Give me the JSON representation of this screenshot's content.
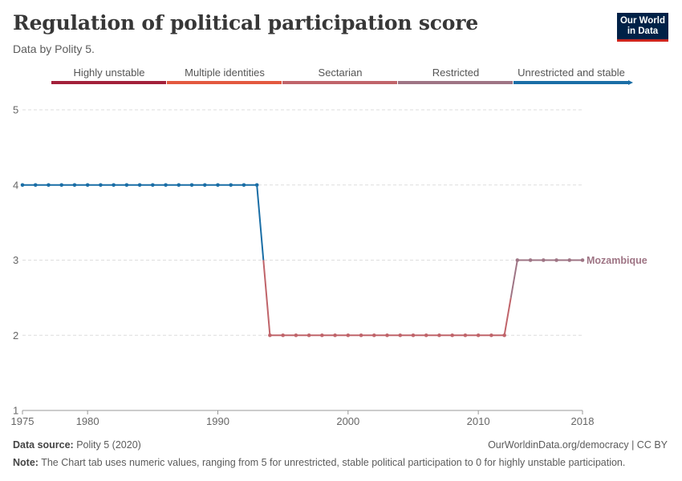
{
  "header": {
    "title": "Regulation of political participation score",
    "subtitle": "Data by Polity 5.",
    "logo_line1": "Our World",
    "logo_line2": "in Data"
  },
  "footer": {
    "source_label": "Data source:",
    "source_text": " Polity 5 (2020)",
    "url": "OurWorldinData.org/democracy | CC BY",
    "note_label": "Note:",
    "note_text": " The Chart tab uses numeric values, ranging from 5 for unrestricted, stable political participation to 0 for highly unstable participation."
  },
  "colors": {
    "highly_unstable": "#a2203a",
    "multiple_identities": "#e3593f",
    "sectarian": "#c0646a",
    "restricted": "#9e7484",
    "unrestricted": "#1a6ea6",
    "grid": "#dddddd",
    "axis_text": "#666666"
  },
  "chart_data": {
    "type": "line",
    "title": "Regulation of political participation score",
    "xlim": [
      1975,
      2018
    ],
    "ylim": [
      1,
      5
    ],
    "x_ticks": [
      1975,
      1980,
      1990,
      2000,
      2010,
      2018
    ],
    "y_ticks": [
      1,
      2,
      3,
      4,
      5
    ],
    "grid": true,
    "legend": {
      "placement": "top",
      "categories": [
        "Highly unstable",
        "Multiple identities",
        "Sectarian",
        "Restricted",
        "Unrestricted and stable"
      ]
    },
    "series": [
      {
        "name": "Mozambique",
        "x": [
          1975,
          1976,
          1977,
          1978,
          1979,
          1980,
          1981,
          1982,
          1983,
          1984,
          1985,
          1986,
          1987,
          1988,
          1989,
          1990,
          1991,
          1992,
          1993,
          1994,
          1995,
          1996,
          1997,
          1998,
          1999,
          2000,
          2001,
          2002,
          2003,
          2004,
          2005,
          2006,
          2007,
          2008,
          2009,
          2010,
          2011,
          2012,
          2013,
          2014,
          2015,
          2016,
          2017,
          2018
        ],
        "y": [
          4,
          4,
          4,
          4,
          4,
          4,
          4,
          4,
          4,
          4,
          4,
          4,
          4,
          4,
          4,
          4,
          4,
          4,
          4,
          2,
          2,
          2,
          2,
          2,
          2,
          2,
          2,
          2,
          2,
          2,
          2,
          2,
          2,
          2,
          2,
          2,
          2,
          2,
          3,
          3,
          3,
          3,
          3,
          3
        ]
      }
    ]
  }
}
